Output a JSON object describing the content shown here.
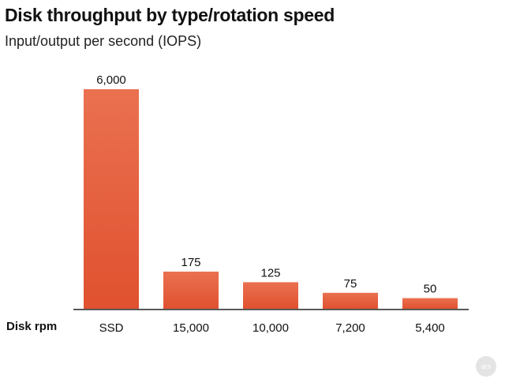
{
  "chart_data": {
    "type": "bar",
    "title": "Disk throughput by type/rotation speed",
    "subtitle": "Input/output per second (IOPS)",
    "xlabel": "Disk rpm",
    "ylabel": "",
    "categories": [
      "SSD",
      "15,000",
      "10,000",
      "7,200",
      "5,400"
    ],
    "values": [
      6000,
      175,
      125,
      75,
      50
    ],
    "value_labels": [
      "6,000",
      "175",
      "125",
      "75",
      "50"
    ],
    "scale": "broken",
    "grid": false,
    "legend": "none",
    "bar_color": "#e0512f",
    "bar_color_light": "#ea7150"
  },
  "logo_text": "ars"
}
